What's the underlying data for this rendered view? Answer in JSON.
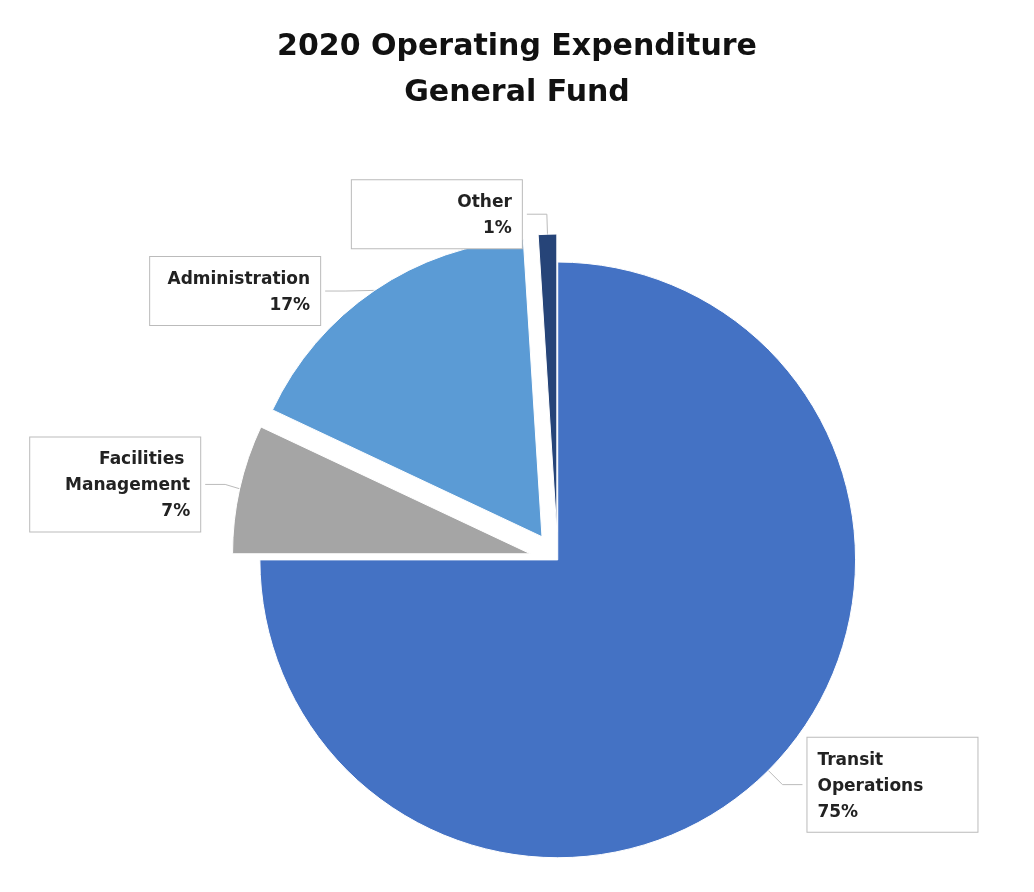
{
  "chart_data": {
    "type": "pie",
    "title": "2020 Operating Expenditure\nGeneral Fund",
    "categories": [
      "Transit Operations",
      "Facilities Management",
      "Administration",
      "Other"
    ],
    "values": [
      75,
      7,
      17,
      1
    ],
    "colors": [
      "#4472c4",
      "#a5a5a5",
      "#5b9bd5",
      "#264478"
    ],
    "value_labels": [
      "75%",
      "7%",
      "17%",
      "1%"
    ],
    "legend": false
  }
}
